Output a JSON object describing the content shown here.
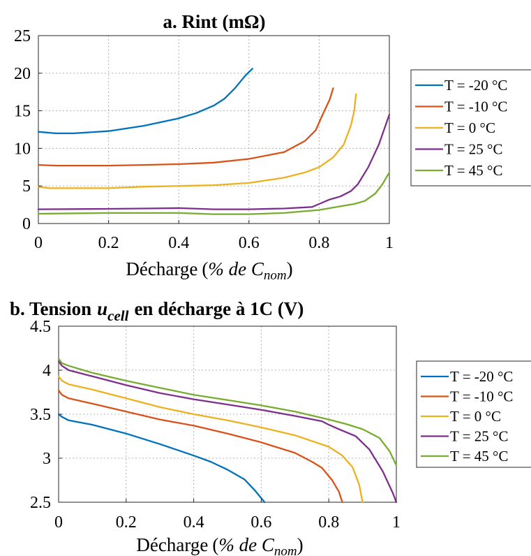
{
  "chart_data": [
    {
      "type": "line",
      "title": "a. Rint (mΩ)",
      "title_main": "a. Rint",
      "title_unit": "(mΩ)",
      "xlabel_prefix": "Décharge",
      "xlabel_math": "% de C",
      "xlabel_sub": "nom",
      "xlim": [
        0,
        1
      ],
      "ylim": [
        0,
        25
      ],
      "xticks": [
        "0",
        "0.2",
        "0.4",
        "0.6",
        "0.8",
        "1"
      ],
      "yticks": [
        "0",
        "5",
        "10",
        "15",
        "20",
        "25"
      ],
      "grid": true,
      "legend_position": "right-outside",
      "series": [
        {
          "name": "T = -20 °C",
          "color": "#0072BD",
          "points": [
            [
              0,
              12.2
            ],
            [
              0.05,
              12.0
            ],
            [
              0.1,
              12.0
            ],
            [
              0.2,
              12.3
            ],
            [
              0.3,
              13.0
            ],
            [
              0.4,
              14.0
            ],
            [
              0.45,
              14.7
            ],
            [
              0.5,
              15.7
            ],
            [
              0.53,
              16.6
            ],
            [
              0.56,
              18.0
            ],
            [
              0.59,
              19.7
            ],
            [
              0.61,
              20.6
            ]
          ]
        },
        {
          "name": "T = -10 °C",
          "color": "#D95319",
          "points": [
            [
              0,
              7.8
            ],
            [
              0.05,
              7.7
            ],
            [
              0.2,
              7.7
            ],
            [
              0.3,
              7.8
            ],
            [
              0.4,
              7.9
            ],
            [
              0.5,
              8.1
            ],
            [
              0.6,
              8.6
            ],
            [
              0.7,
              9.5
            ],
            [
              0.76,
              11.0
            ],
            [
              0.79,
              12.4
            ],
            [
              0.81,
              14.5
            ],
            [
              0.83,
              16.5
            ],
            [
              0.84,
              18.0
            ]
          ]
        },
        {
          "name": "T = 0 °C",
          "color": "#EDB120",
          "points": [
            [
              0,
              4.9
            ],
            [
              0.03,
              4.7
            ],
            [
              0.2,
              4.7
            ],
            [
              0.3,
              4.9
            ],
            [
              0.4,
              5.0
            ],
            [
              0.5,
              5.1
            ],
            [
              0.6,
              5.4
            ],
            [
              0.7,
              6.1
            ],
            [
              0.76,
              6.8
            ],
            [
              0.8,
              7.5
            ],
            [
              0.84,
              8.8
            ],
            [
              0.87,
              10.5
            ],
            [
              0.89,
              13.0
            ],
            [
              0.9,
              15.0
            ],
            [
              0.905,
              17.2
            ]
          ]
        },
        {
          "name": "T = 25 °C",
          "color": "#7E2F8E",
          "points": [
            [
              0,
              1.9
            ],
            [
              0.2,
              1.95
            ],
            [
              0.3,
              2.0
            ],
            [
              0.4,
              2.05
            ],
            [
              0.5,
              1.9
            ],
            [
              0.6,
              1.9
            ],
            [
              0.7,
              2.0
            ],
            [
              0.78,
              2.2
            ],
            [
              0.8,
              2.6
            ],
            [
              0.83,
              3.2
            ],
            [
              0.86,
              3.6
            ],
            [
              0.89,
              4.3
            ],
            [
              0.91,
              5.2
            ],
            [
              0.94,
              7.5
            ],
            [
              0.97,
              10.5
            ],
            [
              1.0,
              14.5
            ]
          ]
        },
        {
          "name": "T = 45 °C",
          "color": "#77AC30",
          "points": [
            [
              0,
              1.3
            ],
            [
              0.2,
              1.4
            ],
            [
              0.4,
              1.4
            ],
            [
              0.5,
              1.25
            ],
            [
              0.6,
              1.25
            ],
            [
              0.7,
              1.4
            ],
            [
              0.8,
              1.8
            ],
            [
              0.85,
              2.2
            ],
            [
              0.9,
              2.6
            ],
            [
              0.93,
              3.0
            ],
            [
              0.96,
              4.0
            ],
            [
              0.98,
              5.2
            ],
            [
              1.0,
              6.8
            ]
          ]
        }
      ]
    },
    {
      "type": "line",
      "title": "b. Tension u_cell en décharge à 1C (V)",
      "title_pre": "b. Tension",
      "title_var": "u",
      "title_sub": "cell",
      "title_post": "en décharge à 1C (V)",
      "xlabel_prefix": "Décharge",
      "xlabel_math": "% de C",
      "xlabel_sub": "nom",
      "xlim": [
        0,
        1
      ],
      "ylim": [
        2.5,
        4.5
      ],
      "xticks": [
        "0",
        "0.2",
        "0.4",
        "0.6",
        "0.8",
        "1"
      ],
      "yticks": [
        "2.5",
        "3",
        "3.5",
        "4",
        "4.5"
      ],
      "grid": true,
      "legend_position": "right-outside",
      "series": [
        {
          "name": "T = -20 °C",
          "color": "#0072BD",
          "points": [
            [
              0,
              3.5
            ],
            [
              0.01,
              3.47
            ],
            [
              0.03,
              3.43
            ],
            [
              0.1,
              3.38
            ],
            [
              0.2,
              3.28
            ],
            [
              0.3,
              3.16
            ],
            [
              0.4,
              3.03
            ],
            [
              0.45,
              2.96
            ],
            [
              0.5,
              2.87
            ],
            [
              0.55,
              2.76
            ],
            [
              0.58,
              2.64
            ],
            [
              0.61,
              2.5
            ]
          ]
        },
        {
          "name": "T = -10 °C",
          "color": "#D95319",
          "points": [
            [
              0,
              3.77
            ],
            [
              0.01,
              3.72
            ],
            [
              0.03,
              3.68
            ],
            [
              0.1,
              3.62
            ],
            [
              0.2,
              3.53
            ],
            [
              0.3,
              3.44
            ],
            [
              0.4,
              3.37
            ],
            [
              0.5,
              3.28
            ],
            [
              0.6,
              3.18
            ],
            [
              0.7,
              3.06
            ],
            [
              0.75,
              2.96
            ],
            [
              0.78,
              2.89
            ],
            [
              0.81,
              2.75
            ],
            [
              0.83,
              2.62
            ],
            [
              0.84,
              2.5
            ]
          ]
        },
        {
          "name": "T = 0 °C",
          "color": "#EDB120",
          "points": [
            [
              0,
              3.93
            ],
            [
              0.01,
              3.88
            ],
            [
              0.03,
              3.84
            ],
            [
              0.1,
              3.78
            ],
            [
              0.2,
              3.68
            ],
            [
              0.3,
              3.58
            ],
            [
              0.4,
              3.5
            ],
            [
              0.5,
              3.43
            ],
            [
              0.6,
              3.35
            ],
            [
              0.7,
              3.26
            ],
            [
              0.8,
              3.13
            ],
            [
              0.84,
              3.03
            ],
            [
              0.87,
              2.9
            ],
            [
              0.89,
              2.7
            ],
            [
              0.9,
              2.5
            ]
          ]
        },
        {
          "name": "T = 25 °C",
          "color": "#7E2F8E",
          "points": [
            [
              0,
              4.1
            ],
            [
              0.01,
              4.05
            ],
            [
              0.03,
              4.0
            ],
            [
              0.1,
              3.93
            ],
            [
              0.2,
              3.83
            ],
            [
              0.3,
              3.74
            ],
            [
              0.4,
              3.67
            ],
            [
              0.5,
              3.61
            ],
            [
              0.6,
              3.55
            ],
            [
              0.7,
              3.48
            ],
            [
              0.78,
              3.42
            ],
            [
              0.8,
              3.38
            ],
            [
              0.83,
              3.33
            ],
            [
              0.88,
              3.25
            ],
            [
              0.92,
              3.1
            ],
            [
              0.96,
              2.85
            ],
            [
              0.99,
              2.6
            ],
            [
              1.0,
              2.5
            ]
          ]
        },
        {
          "name": "T = 45 °C",
          "color": "#77AC30",
          "points": [
            [
              0,
              4.13
            ],
            [
              0.01,
              4.08
            ],
            [
              0.03,
              4.05
            ],
            [
              0.1,
              3.97
            ],
            [
              0.2,
              3.88
            ],
            [
              0.3,
              3.8
            ],
            [
              0.4,
              3.72
            ],
            [
              0.5,
              3.66
            ],
            [
              0.6,
              3.6
            ],
            [
              0.7,
              3.53
            ],
            [
              0.8,
              3.44
            ],
            [
              0.85,
              3.39
            ],
            [
              0.9,
              3.33
            ],
            [
              0.95,
              3.23
            ],
            [
              0.98,
              3.08
            ],
            [
              1.0,
              2.92
            ]
          ]
        }
      ]
    }
  ]
}
